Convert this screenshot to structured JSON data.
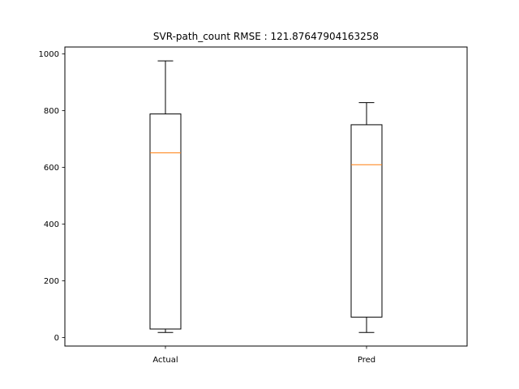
{
  "chart_data": {
    "type": "box",
    "title": "SVR-path_count RMSE : 121.87647904163258",
    "xlabel": "",
    "ylabel": "",
    "categories": [
      "Actual",
      "Pred"
    ],
    "boxes": [
      {
        "label": "Actual",
        "whisker_low": 18,
        "q1": 30,
        "median": 651,
        "q3": 788,
        "whisker_high": 975
      },
      {
        "label": "Pred",
        "whisker_low": 18,
        "q1": 72,
        "median": 609,
        "q3": 750,
        "whisker_high": 828
      }
    ],
    "yticks": [
      0,
      200,
      400,
      600,
      800,
      1000
    ],
    "ylim": [
      -30,
      1024
    ],
    "grid": false,
    "colors": {
      "box": "#000000",
      "median": "#ff7f0e",
      "background": "#ffffff"
    }
  }
}
